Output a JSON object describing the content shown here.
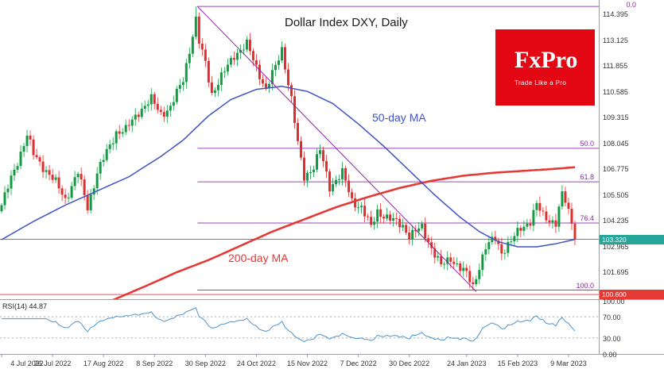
{
  "logo": {
    "name": "FxPro",
    "tagline": "Trade Like a Pro"
  },
  "colors": {
    "background": "#ffffff",
    "candle_up": "#0f9d42",
    "candle_down": "#e32d2d",
    "ma50": "#3d52c4",
    "ma200": "#e53935",
    "fib": "#8e24aa",
    "trendline": "#8e24aa",
    "current_line": "#26a69a",
    "current_badge": "#26a69a",
    "level_line": "#ef5350",
    "level_badge": "#e53935",
    "rsi_line": "#4f93ce",
    "rsi_guide": "#9db3ad",
    "axis_text": "#333333",
    "separator": "#9aa0a6",
    "logo_bg": "#e30613"
  },
  "chart_data": {
    "type": "candlestick",
    "title": "Dollar Index DXY, Daily",
    "timeframe": "Daily",
    "ylim": [
      100.35,
      115.1
    ],
    "price_ticks": [
      "114.395",
      "113.125",
      "111.855",
      "110.585",
      "109.315",
      "108.045",
      "106.775",
      "105.505",
      "104.235",
      "102.965",
      "101.695"
    ],
    "date_ticks": [
      [
        0,
        "4 Jul 2022"
      ],
      [
        16,
        "26 Jul 2022"
      ],
      [
        32,
        "17 Aug 2022"
      ],
      [
        48,
        "8 Sep 2022"
      ],
      [
        64,
        "30 Sep 2022"
      ],
      [
        80,
        "24 Oct 2022"
      ],
      [
        96,
        "15 Nov 2022"
      ],
      [
        112,
        "7 Dec 2022"
      ],
      [
        128,
        "30 Dec 2022"
      ],
      [
        146,
        "24 Jan 2023"
      ],
      [
        162,
        "15 Feb 2023"
      ],
      [
        178,
        "9 Mar 2023"
      ]
    ],
    "days_total": 181,
    "x_slots": 188,
    "close_keypoints": [
      [
        0,
        105.0
      ],
      [
        3,
        106.3
      ],
      [
        8,
        108.45
      ],
      [
        10,
        107.5
      ],
      [
        13,
        106.9
      ],
      [
        17,
        106.1
      ],
      [
        20,
        105.3
      ],
      [
        24,
        106.6
      ],
      [
        27,
        104.9
      ],
      [
        30,
        106.6
      ],
      [
        36,
        108.6
      ],
      [
        39,
        108.7
      ],
      [
        43,
        109.6
      ],
      [
        47,
        110.2
      ],
      [
        50,
        109.5
      ],
      [
        53,
        109.8
      ],
      [
        57,
        111.2
      ],
      [
        61,
        114.1
      ],
      [
        62,
        113.0
      ],
      [
        64,
        112.0
      ],
      [
        66,
        110.5
      ],
      [
        69,
        111.3
      ],
      [
        73,
        112.4
      ],
      [
        77,
        112.9
      ],
      [
        80,
        111.8
      ],
      [
        83,
        110.7
      ],
      [
        86,
        111.8
      ],
      [
        88,
        112.7
      ],
      [
        91,
        110.2
      ],
      [
        93,
        108.0
      ],
      [
        95,
        106.4
      ],
      [
        98,
        106.9
      ],
      [
        100,
        107.7
      ],
      [
        103,
        105.9
      ],
      [
        107,
        106.6
      ],
      [
        110,
        105.2
      ],
      [
        113,
        104.9
      ],
      [
        116,
        103.9
      ],
      [
        118,
        104.7
      ],
      [
        122,
        104.3
      ],
      [
        126,
        104.0
      ],
      [
        128,
        103.5
      ],
      [
        132,
        103.9
      ],
      [
        135,
        102.9
      ],
      [
        138,
        102.0
      ],
      [
        141,
        102.4
      ],
      [
        144,
        101.9
      ],
      [
        146,
        101.6
      ],
      [
        148,
        101.0
      ],
      [
        150,
        102.0
      ],
      [
        152,
        102.9
      ],
      [
        155,
        103.4
      ],
      [
        157,
        102.7
      ],
      [
        160,
        103.2
      ],
      [
        163,
        103.9
      ],
      [
        166,
        104.2
      ],
      [
        168,
        105.0
      ],
      [
        170,
        104.5
      ],
      [
        172,
        104.3
      ],
      [
        174,
        104.1
      ],
      [
        176,
        105.5
      ],
      [
        177,
        105.2
      ],
      [
        179,
        104.2
      ],
      [
        180,
        103.32
      ]
    ],
    "high_extreme": {
      "day": 61,
      "price": 114.78
    },
    "low_extreme": {
      "day": 148,
      "price": 100.82
    },
    "current_price": "103.320",
    "level_price": "100.600",
    "ma50": {
      "label": "50-day MA",
      "keypoints": [
        [
          0,
          103.3
        ],
        [
          10,
          104.2
        ],
        [
          20,
          105.0
        ],
        [
          30,
          105.7
        ],
        [
          40,
          106.4
        ],
        [
          50,
          107.4
        ],
        [
          57,
          108.2
        ],
        [
          65,
          109.4
        ],
        [
          72,
          110.2
        ],
        [
          80,
          110.7
        ],
        [
          88,
          110.85
        ],
        [
          96,
          110.6
        ],
        [
          104,
          110.0
        ],
        [
          112,
          109.0
        ],
        [
          120,
          107.9
        ],
        [
          128,
          106.7
        ],
        [
          136,
          105.5
        ],
        [
          144,
          104.4
        ],
        [
          150,
          103.7
        ],
        [
          156,
          103.2
        ],
        [
          162,
          102.95
        ],
        [
          168,
          102.95
        ],
        [
          174,
          103.1
        ],
        [
          181,
          103.35
        ]
      ]
    },
    "ma200": {
      "label": "200-day MA",
      "keypoints": [
        [
          30,
          100.0
        ],
        [
          36,
          100.4
        ],
        [
          45,
          101.0
        ],
        [
          55,
          101.7
        ],
        [
          65,
          102.3
        ],
        [
          75,
          103.0
        ],
        [
          85,
          103.7
        ],
        [
          95,
          104.3
        ],
        [
          105,
          104.9
        ],
        [
          115,
          105.4
        ],
        [
          125,
          105.85
        ],
        [
          135,
          106.2
        ],
        [
          145,
          106.45
        ],
        [
          155,
          106.6
        ],
        [
          165,
          106.7
        ],
        [
          173,
          106.78
        ],
        [
          181,
          106.88
        ]
      ]
    },
    "fib_levels": [
      {
        "label": "0.0",
        "price": 114.78
      },
      {
        "label": "50.0",
        "price": 107.8
      },
      {
        "label": "61.8",
        "price": 106.15
      },
      {
        "label": "76.4",
        "price": 104.12
      },
      {
        "label": "100.0",
        "price": 100.82
      }
    ],
    "trendlines": [
      {
        "from_day": 61.5,
        "from_price": 114.78,
        "to_day": 149,
        "to_price": 100.75
      }
    ],
    "rsi": {
      "label": "RSI(14)",
      "current": "44.87",
      "period": 14,
      "guides": [
        70,
        30
      ],
      "ticks": [
        [
          "100.00",
          100
        ],
        [
          "70.00",
          70
        ],
        [
          "30.00",
          30
        ],
        [
          "0.00",
          0
        ]
      ]
    }
  }
}
